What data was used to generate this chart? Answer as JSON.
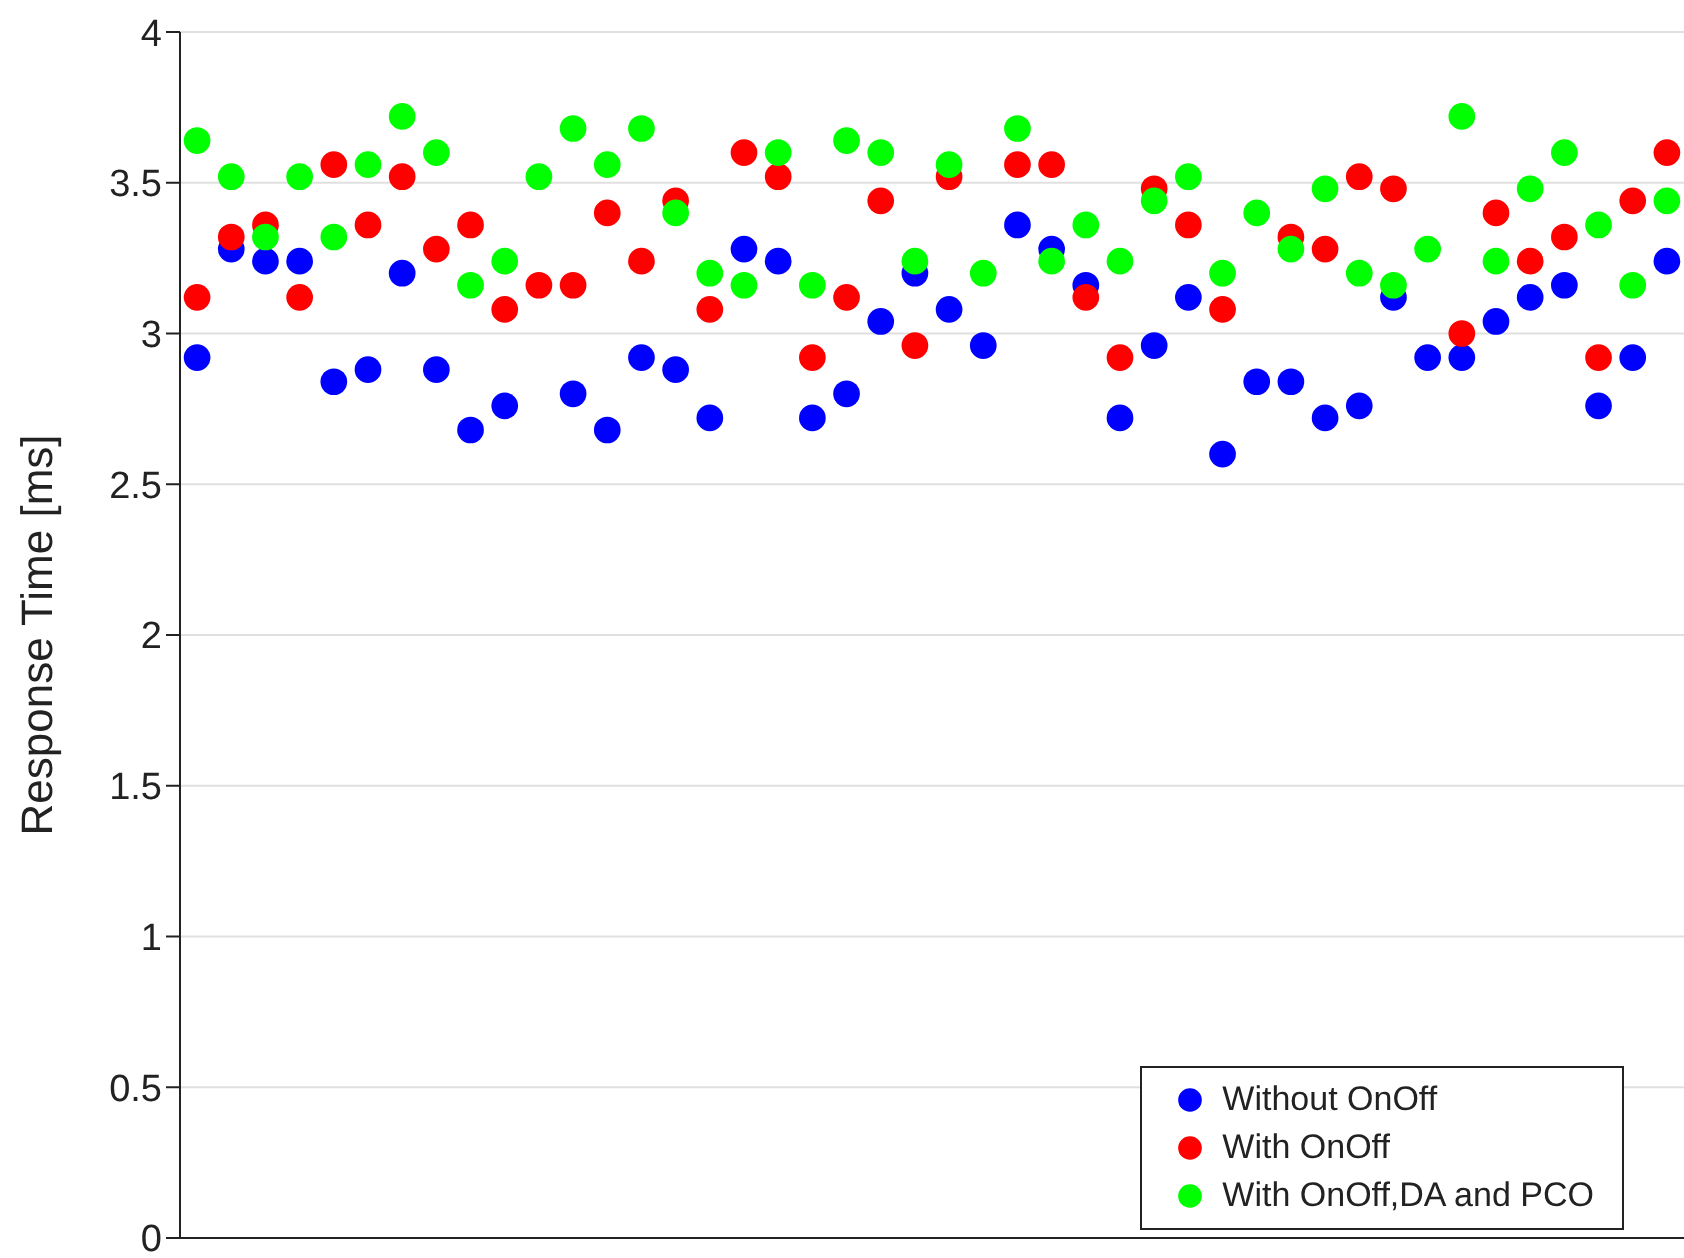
{
  "chart_data": {
    "type": "scatter",
    "ylabel": "Response Time [ms]",
    "categories": [
      null,
      null,
      null,
      null,
      null,
      null,
      null,
      null,
      null,
      null,
      null,
      null,
      null,
      null,
      null,
      null,
      null,
      null,
      null,
      null,
      null,
      null,
      null,
      null,
      null,
      null,
      null,
      null,
      null,
      null,
      null,
      null,
      null,
      null,
      null,
      null,
      null,
      null,
      null,
      null,
      null,
      null,
      null,
      null
    ],
    "series": [
      {
        "name": "Without OnOff",
        "color": "#0000ff",
        "values": [
          2.92,
          3.28,
          3.24,
          3.24,
          2.84,
          2.88,
          3.2,
          2.88,
          2.68,
          2.76,
          null,
          2.8,
          2.68,
          2.92,
          2.88,
          2.72,
          3.28,
          3.24,
          2.72,
          2.8,
          3.04,
          3.2,
          3.08,
          2.96,
          3.36,
          3.28,
          3.16,
          2.72,
          2.96,
          3.12,
          2.6,
          2.84,
          2.84,
          2.72,
          2.76,
          3.12,
          2.92,
          2.92,
          3.04,
          3.12,
          3.16,
          2.76,
          2.92,
          3.24
        ]
      },
      {
        "name": "With OnOff",
        "color": "#ff0000",
        "values": [
          3.12,
          3.32,
          3.36,
          3.12,
          3.56,
          3.36,
          3.52,
          3.28,
          3.36,
          3.08,
          3.16,
          3.16,
          3.4,
          3.24,
          3.44,
          3.08,
          3.6,
          3.52,
          2.92,
          3.12,
          3.44,
          2.96,
          3.52,
          null,
          3.56,
          3.56,
          3.12,
          2.92,
          3.48,
          3.36,
          3.08,
          null,
          3.32,
          3.28,
          3.52,
          3.48,
          null,
          3.0,
          3.4,
          3.24,
          3.32,
          2.92,
          3.44,
          3.6
        ]
      },
      {
        "name": "With OnOff,DA and PCO",
        "color": "#00ff00",
        "values": [
          3.64,
          3.52,
          3.32,
          3.52,
          3.32,
          3.56,
          3.72,
          3.6,
          3.16,
          3.24,
          3.52,
          3.68,
          3.56,
          3.68,
          3.4,
          3.2,
          3.16,
          3.6,
          3.16,
          3.64,
          3.6,
          3.24,
          3.56,
          3.2,
          3.68,
          3.24,
          3.36,
          3.24,
          3.44,
          3.52,
          3.2,
          3.4,
          3.28,
          3.48,
          3.2,
          3.16,
          3.28,
          3.72,
          3.24,
          3.48,
          3.6,
          3.36,
          3.16,
          3.44
        ]
      }
    ],
    "ylim": [
      0,
      4
    ],
    "yticks": [
      0,
      0.5,
      1,
      1.5,
      2,
      2.5,
      3,
      3.5,
      4
    ],
    "grid": "y",
    "legend": "bottom right",
    "marker": "circle",
    "tick_labels": "y"
  }
}
